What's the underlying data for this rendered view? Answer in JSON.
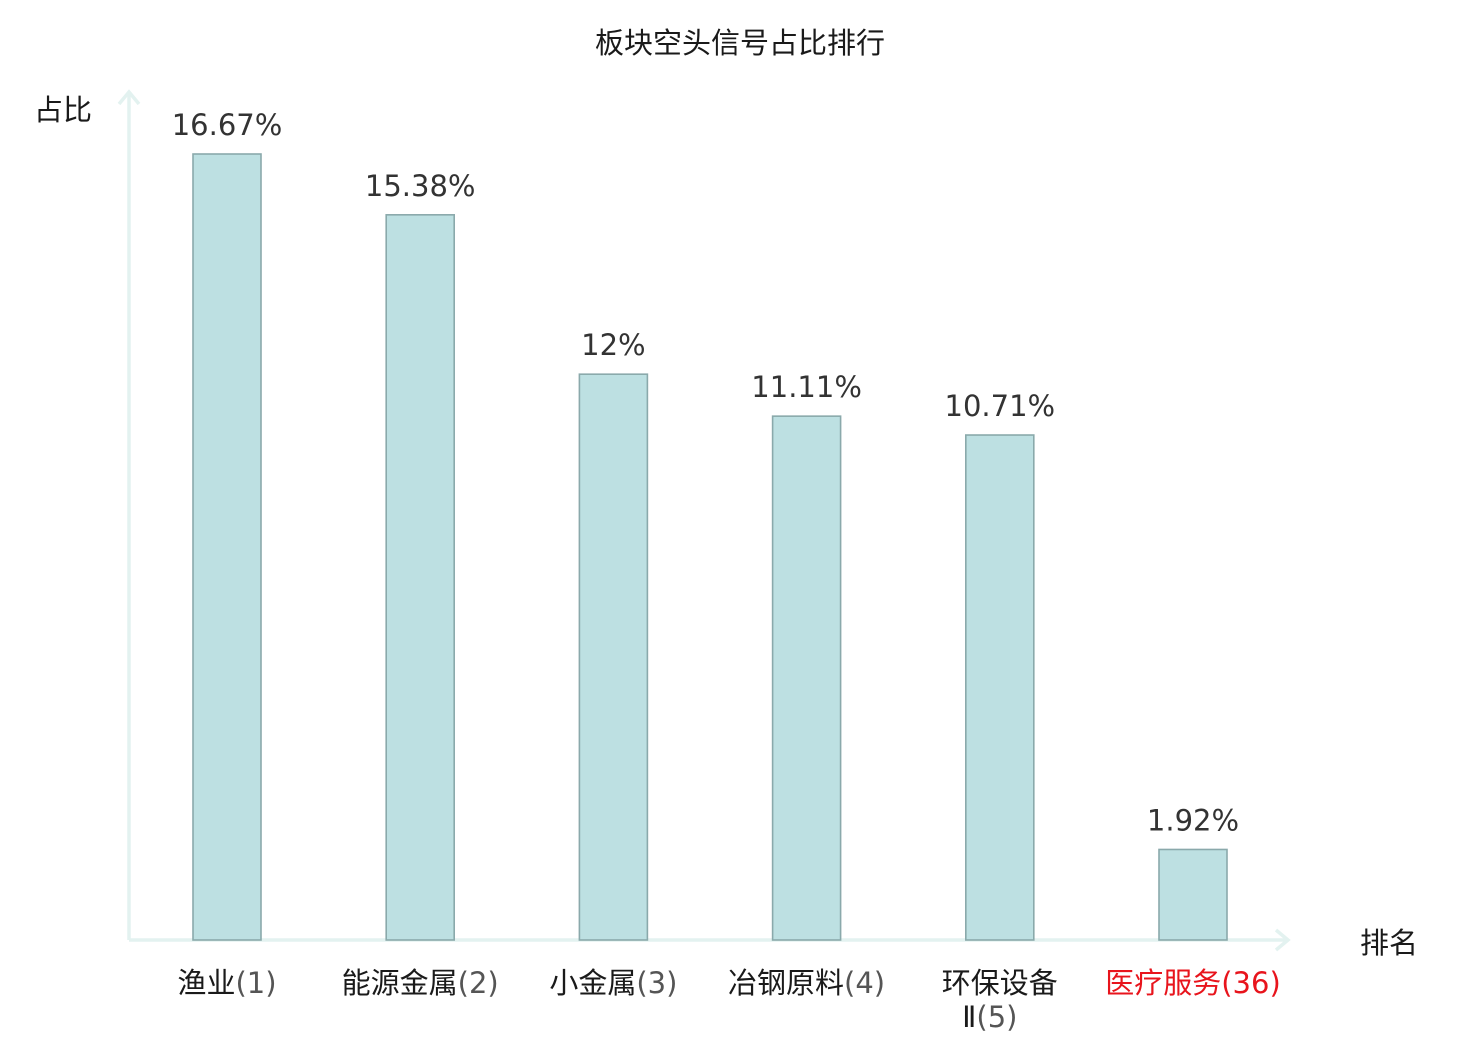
{
  "chart_data": {
    "type": "bar",
    "title": "板块空头信号占比排行",
    "ylabel": "占比",
    "xlabel": "排名",
    "categories": [
      {
        "name": "渔业",
        "rank": "(1)",
        "name2": "",
        "highlight": false
      },
      {
        "name": "能源金属",
        "rank": "(2)",
        "name2": "",
        "highlight": false
      },
      {
        "name": "小金属",
        "rank": "(3)",
        "name2": "",
        "highlight": false
      },
      {
        "name": "冶钢原料",
        "rank": "(4)",
        "name2": "",
        "highlight": false
      },
      {
        "name": "环保设备",
        "rank": "(5)",
        "name2": "Ⅱ",
        "highlight": false
      },
      {
        "name": "医疗服务",
        "rank": "(36)",
        "name2": "",
        "highlight": true
      }
    ],
    "values": [
      16.67,
      15.38,
      12,
      11.11,
      10.71,
      1.92
    ],
    "value_labels": [
      "16.67%",
      "15.38%",
      "12%",
      "11.11%",
      "10.71%",
      "1.92%"
    ],
    "ylim": [
      0,
      16.67
    ],
    "grid": false,
    "colors": {
      "bar": "#bde0e2",
      "bar_border": "#8aa9ab",
      "axis": "#e3f2f0",
      "highlight": "#e8141c"
    }
  }
}
